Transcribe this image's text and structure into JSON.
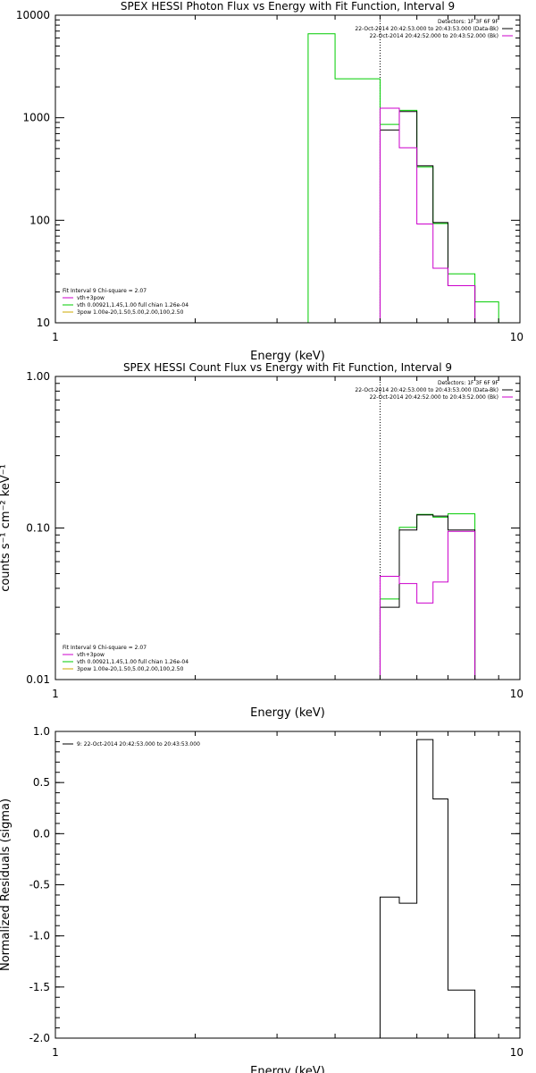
{
  "chart_data": [
    {
      "type": "line",
      "title": "SPEX HESSI Photon Flux vs Energy with Fit Function, Interval 9",
      "xlabel": "Energy (keV)",
      "ylabel": "",
      "xscale": "log",
      "yscale": "log",
      "xlim": [
        1,
        10
      ],
      "ylim": [
        10,
        10000
      ],
      "x_ticks": [
        {
          "v": 1,
          "label": "1"
        },
        {
          "v": 10,
          "label": "10"
        }
      ],
      "y_ticks": [
        {
          "v": 10,
          "label": "10"
        },
        {
          "v": 100,
          "label": "100"
        },
        {
          "v": 1000,
          "label": "1000"
        },
        {
          "v": 10000,
          "label": "10000"
        }
      ],
      "vline": 5.0,
      "legend_right": {
        "header": "Detectors: 1F 3F 6F 9F",
        "entries": [
          {
            "text": "22-Oct-2014 20:42:53.000 to 20:43:53.000 (Data-Bk)",
            "color": "#000000"
          },
          {
            "text": "22-Oct-2014 20:42:52.000 to 20:43:52.000 (Bk)",
            "color": "#cc00cc"
          }
        ]
      },
      "legend_left": {
        "header": "Fit Interval 9   Chi-square = 2.07",
        "entries": [
          {
            "text": "vth+3pow",
            "color": "#cc00cc"
          },
          {
            "text": "vth 0.00921,1.45,1.00  full chian 1.26e-04",
            "color": "#00cc00"
          },
          {
            "text": "3pow 1.00e-20,1.50,5.00,2.00,100,2.50",
            "color": "#ccaa00"
          }
        ]
      },
      "series": [
        {
          "color": "#00cc00",
          "edges": [
            3,
            3.5,
            4,
            5,
            5.5,
            6,
            6.5,
            7,
            8,
            9,
            10
          ],
          "values": [
            null,
            6600,
            2400,
            860,
            1180,
            330,
            93,
            30,
            16,
            null
          ]
        },
        {
          "color": "#000000",
          "edges": [
            5,
            5.5,
            6,
            6.5,
            7,
            8,
            9,
            10
          ],
          "values": [
            760,
            1150,
            340,
            95,
            23,
            null,
            null
          ]
        },
        {
          "color": "#cc00cc",
          "edges": [
            5,
            5.5,
            6,
            6.5,
            7,
            8,
            9,
            10
          ],
          "values": [
            1240,
            510,
            92,
            34,
            23,
            null,
            null
          ]
        }
      ]
    },
    {
      "type": "line",
      "title": "SPEX HESSI Count Flux vs Energy with Fit Function, Interval 9",
      "xlabel": "Energy (keV)",
      "ylabel": "counts s⁻¹ cm⁻² keV⁻¹",
      "xscale": "log",
      "yscale": "log",
      "xlim": [
        1,
        10
      ],
      "ylim": [
        0.01,
        1.0
      ],
      "x_ticks": [
        {
          "v": 1,
          "label": "1"
        },
        {
          "v": 10,
          "label": "10"
        }
      ],
      "y_ticks": [
        {
          "v": 0.01,
          "label": "0.01"
        },
        {
          "v": 0.1,
          "label": "0.10"
        },
        {
          "v": 1.0,
          "label": "1.00"
        }
      ],
      "vline": 5.0,
      "legend_right": {
        "header": "Detectors: 1F 3F 6F 9F",
        "entries": [
          {
            "text": "22-Oct-2014 20:42:53.000 to 20:43:53.000 (Data-Bk)",
            "color": "#000000"
          },
          {
            "text": "22-Oct-2014 20:42:52.000 to 20:43:52.000 (Bk)",
            "color": "#cc00cc"
          }
        ]
      },
      "legend_left": {
        "header": "Fit Interval 9   Chi-square = 2.07",
        "entries": [
          {
            "text": "vth+3pow",
            "color": "#cc00cc"
          },
          {
            "text": "vth 0.00921,1.45,1.00  full chian 1.26e-04",
            "color": "#00cc00"
          },
          {
            "text": "3pow 1.00e-20,1.50,5.00,2.00,100,2.50",
            "color": "#ccaa00"
          }
        ]
      },
      "series": [
        {
          "color": "#00cc00",
          "edges": [
            5,
            5.5,
            6,
            6.5,
            7,
            8,
            9,
            10
          ],
          "values": [
            0.034,
            0.101,
            0.123,
            0.118,
            0.124,
            null,
            null
          ]
        },
        {
          "color": "#000000",
          "edges": [
            5,
            5.5,
            6,
            6.5,
            7,
            8,
            9,
            10
          ],
          "values": [
            0.03,
            0.097,
            0.122,
            0.12,
            0.097,
            null,
            null
          ]
        },
        {
          "color": "#cc00cc",
          "edges": [
            5,
            5.5,
            6,
            6.5,
            7,
            8,
            9,
            10
          ],
          "values": [
            0.048,
            0.043,
            0.032,
            0.044,
            0.095,
            null,
            null
          ]
        }
      ]
    },
    {
      "type": "line",
      "title": "",
      "xlabel": "Energy (keV)",
      "ylabel": "Normalized Residuals (sigma)",
      "xscale": "log",
      "yscale": "linear",
      "xlim": [
        1,
        10
      ],
      "ylim": [
        -2.0,
        1.0
      ],
      "x_ticks": [
        {
          "v": 1,
          "label": "1"
        },
        {
          "v": 10,
          "label": "10"
        }
      ],
      "y_ticks": [
        {
          "v": -2.0,
          "label": "-2.0"
        },
        {
          "v": -1.5,
          "label": "-1.5"
        },
        {
          "v": -1.0,
          "label": "-1.0"
        },
        {
          "v": -0.5,
          "label": "-0.5"
        },
        {
          "v": 0.0,
          "label": "0.0"
        },
        {
          "v": 0.5,
          "label": "0.5"
        },
        {
          "v": 1.0,
          "label": "1.0"
        }
      ],
      "legend_left": {
        "header": "",
        "entries": [
          {
            "text": "9: 22-Oct-2014 20:42:53.000 to 20:43:53.000",
            "color": "#000000"
          }
        ]
      },
      "series": [
        {
          "color": "#000000",
          "edges": [
            5,
            5.5,
            6,
            6.5,
            7,
            8,
            9,
            10
          ],
          "values": [
            -0.62,
            -0.68,
            0.92,
            0.34,
            -1.53,
            null,
            null
          ]
        }
      ]
    }
  ]
}
